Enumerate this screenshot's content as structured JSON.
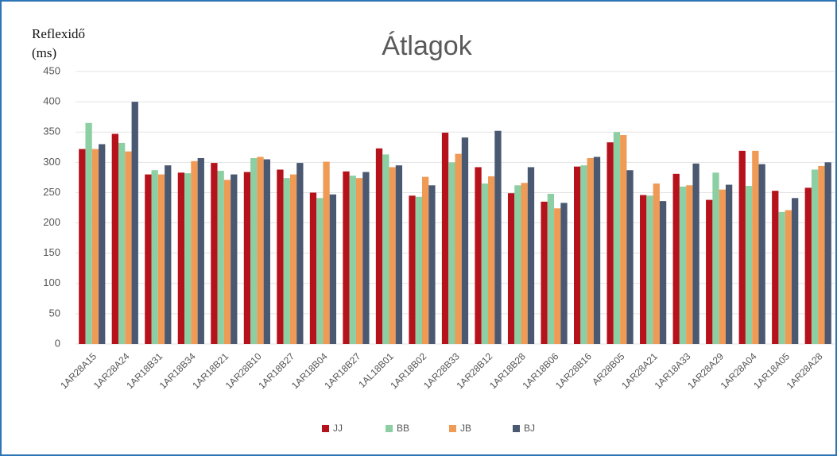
{
  "chart_data": {
    "type": "bar",
    "title": "Átlagok",
    "y_label": [
      "Reflexidő",
      "(ms)"
    ],
    "categories": [
      "1AR28A15",
      "1AR28A24",
      "1AR18B31",
      "1AR18B34",
      "1AR18B21",
      "1AR28B10",
      "1AR18B27",
      "1AR18B04",
      "1AR18B27",
      "1AL18B01",
      "1AR18B02",
      "1AR28B33",
      "1AR28B12",
      "1AR18B28",
      "1AR18B06",
      "1AR28B16",
      "AR28B05",
      "1AR28A21",
      "1AR18A33",
      "1AR28A29",
      "1AR28A04",
      "1AR18A05",
      "1AR28A28"
    ],
    "series": [
      {
        "name": "JJ",
        "color": "#b5121b",
        "values": [
          322,
          347,
          280,
          283,
          299,
          284,
          288,
          250,
          285,
          323,
          245,
          349,
          292,
          249,
          235,
          293,
          333,
          246,
          281,
          238,
          319,
          253,
          258
        ]
      },
      {
        "name": "BB",
        "color": "#8ccfa3",
        "values": [
          365,
          332,
          287,
          282,
          286,
          307,
          274,
          241,
          278,
          313,
          243,
          300,
          265,
          262,
          248,
          295,
          350,
          245,
          260,
          283,
          261,
          218,
          288
        ]
      },
      {
        "name": "JB",
        "color": "#ef9a55",
        "values": [
          322,
          318,
          280,
          302,
          271,
          309,
          280,
          301,
          274,
          292,
          276,
          314,
          277,
          266,
          224,
          307,
          345,
          265,
          262,
          255,
          319,
          221,
          294
        ]
      },
      {
        "name": "BJ",
        "color": "#4b5872",
        "values": [
          330,
          400,
          295,
          307,
          280,
          305,
          299,
          247,
          284,
          295,
          262,
          341,
          352,
          292,
          233,
          309,
          287,
          236,
          298,
          263,
          297,
          241,
          300
        ]
      }
    ],
    "ylim": [
      0,
      450
    ],
    "yticks": [
      0,
      50,
      100,
      150,
      200,
      250,
      300,
      350,
      400,
      450
    ],
    "grid": true,
    "legend": "bottom"
  }
}
